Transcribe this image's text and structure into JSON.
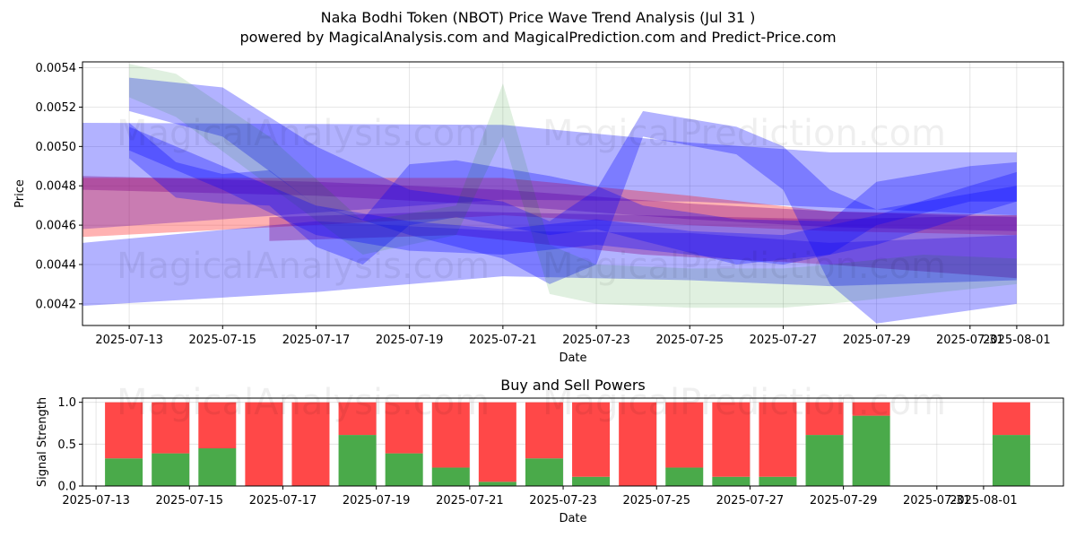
{
  "header": {
    "title_line1": "Naka Bodhi Token (NBOT) Price Wave Trend Analysis (Jul 31 )",
    "title_line2": "powered by MagicalAnalysis.com and MagicalPrediction.com and Predict-Price.com"
  },
  "watermarks": {
    "top_left": "MagicalAnalysis.com",
    "top_right": "MagicalPrediction.com",
    "bottom_left": "MagicalAnalysis.com",
    "bottom_right": "MagicalPrediction.com"
  },
  "colors": {
    "blue_band": "#0000ff",
    "red_band": "#ff0000",
    "purple_band": "#800080",
    "green_band": "#008000",
    "buy_bar": "#4aaa4a",
    "sell_bar": "#ff4848"
  },
  "chart_data": [
    {
      "type": "area",
      "title": "",
      "xlabel": "Date",
      "ylabel": "Price",
      "xlim": [
        "2025-07-12",
        "2025-08-02"
      ],
      "ylim": [
        0.00409,
        0.00543
      ],
      "grid": true,
      "x_ticks": [
        "2025-07-13",
        "2025-07-15",
        "2025-07-17",
        "2025-07-19",
        "2025-07-21",
        "2025-07-23",
        "2025-07-25",
        "2025-07-27",
        "2025-07-29",
        "2025-07-31",
        "2025-08-01"
      ],
      "y_ticks": [
        "0.0042",
        "0.0044",
        "0.0046",
        "0.0048",
        "0.0050",
        "0.0052",
        "0.0054"
      ],
      "bands": [
        {
          "color": "blue",
          "x": [
            "2025-07-12",
            "2025-07-21",
            "2025-07-25",
            "2025-07-28",
            "2025-08-01"
          ],
          "upper": [
            0.00512,
            0.00511,
            0.00502,
            0.00497,
            0.00497
          ],
          "lower": [
            0.00458,
            0.00473,
            0.00472,
            0.00469,
            0.00465
          ]
        },
        {
          "color": "red",
          "x": [
            "2025-07-12",
            "2025-07-21",
            "2025-07-25",
            "2025-07-28",
            "2025-08-01"
          ],
          "upper": [
            0.00484,
            0.00484,
            0.00475,
            0.00467,
            0.00465
          ],
          "lower": [
            0.00454,
            0.00465,
            0.0046,
            0.00457,
            0.00455
          ]
        },
        {
          "color": "blue",
          "x": [
            "2025-07-12",
            "2025-07-17",
            "2025-07-21",
            "2025-07-25",
            "2025-07-28",
            "2025-08-01"
          ],
          "upper": [
            0.00451,
            0.00462,
            0.00457,
            0.00456,
            0.00451,
            0.00455
          ],
          "lower": [
            0.00419,
            0.00426,
            0.00434,
            0.00432,
            0.00429,
            0.00432
          ]
        },
        {
          "color": "purple",
          "x": [
            "2025-07-12",
            "2025-07-17",
            "2025-07-21",
            "2025-07-25",
            "2025-07-28",
            "2025-08-01"
          ],
          "upper": [
            0.00485,
            0.00482,
            0.00478,
            0.00471,
            0.00467,
            0.00464
          ],
          "lower": [
            0.00478,
            0.00475,
            0.0047,
            0.00463,
            0.00459,
            0.00457
          ]
        },
        {
          "color": "purple",
          "x": [
            "2025-07-16",
            "2025-07-20",
            "2025-07-24",
            "2025-07-28",
            "2025-08-01"
          ],
          "upper": [
            0.00464,
            0.00467,
            0.00465,
            0.00463,
            0.00465
          ],
          "lower": [
            0.00452,
            0.00455,
            0.00445,
            0.0044,
            0.00433
          ]
        },
        {
          "color": "blue",
          "x": [
            "2025-07-13",
            "2025-07-14",
            "2025-07-15",
            "2025-07-16",
            "2025-07-17",
            "2025-07-18",
            "2025-07-19",
            "2025-07-20",
            "2025-07-22",
            "2025-07-23",
            "2025-07-24",
            "2025-07-26",
            "2025-07-28",
            "2025-07-29",
            "2025-07-31",
            "2025-08-01"
          ],
          "upper": [
            0.00512,
            0.00492,
            0.00486,
            0.00488,
            0.0047,
            0.00463,
            0.00491,
            0.00493,
            0.00485,
            0.0048,
            0.0047,
            0.00463,
            0.00462,
            0.00482,
            0.0049,
            0.00492
          ],
          "lower": [
            0.00494,
            0.00474,
            0.00471,
            0.0047,
            0.00449,
            0.0044,
            0.0046,
            0.00464,
            0.00455,
            0.00458,
            0.00452,
            0.0044,
            0.00445,
            0.0046,
            0.00472,
            0.00472
          ]
        },
        {
          "color": "blue",
          "x": [
            "2025-07-13",
            "2025-07-15",
            "2025-07-17",
            "2025-07-19",
            "2025-07-21",
            "2025-07-22",
            "2025-07-23",
            "2025-07-24",
            "2025-07-26",
            "2025-07-27",
            "2025-07-28",
            "2025-07-29",
            "2025-08-01"
          ],
          "upper": [
            0.00535,
            0.0053,
            0.005,
            0.00478,
            0.00472,
            0.00462,
            0.00478,
            0.00518,
            0.0051,
            0.005,
            0.00478,
            0.00468,
            0.0048
          ],
          "lower": [
            0.00518,
            0.00505,
            0.0047,
            0.00455,
            0.00443,
            0.0043,
            0.0044,
            0.00505,
            0.00496,
            0.00478,
            0.0043,
            0.0041,
            0.0042
          ]
        },
        {
          "color": "green",
          "x": [
            "2025-07-13",
            "2025-07-14",
            "2025-07-16",
            "2025-07-18",
            "2025-07-20",
            "2025-07-21",
            "2025-07-22",
            "2025-07-23",
            "2025-07-25",
            "2025-07-27",
            "2025-07-28",
            "2025-07-30",
            "2025-08-01"
          ],
          "upper": [
            0.00542,
            0.00537,
            0.00505,
            0.00462,
            0.0047,
            0.00532,
            0.0045,
            0.0044,
            0.00438,
            0.00438,
            0.0044,
            0.00445,
            0.00443
          ],
          "lower": [
            0.00525,
            0.00515,
            0.0048,
            0.00445,
            0.00455,
            0.00505,
            0.00425,
            0.0042,
            0.00418,
            0.00418,
            0.0042,
            0.00425,
            0.0043
          ]
        },
        {
          "color": "blue",
          "x": [
            "2025-07-13",
            "2025-07-15",
            "2025-07-17",
            "2025-07-19",
            "2025-07-21",
            "2025-07-23",
            "2025-07-25",
            "2025-07-27",
            "2025-07-29",
            "2025-07-31",
            "2025-08-01"
          ],
          "upper": [
            0.0051,
            0.0049,
            0.0047,
            0.00462,
            0.00458,
            0.00463,
            0.00457,
            0.00455,
            0.00465,
            0.0048,
            0.00487
          ],
          "lower": [
            0.00498,
            0.00478,
            0.00455,
            0.00447,
            0.00445,
            0.0045,
            0.00445,
            0.0044,
            0.0045,
            0.00465,
            0.00472
          ]
        }
      ]
    },
    {
      "type": "bar",
      "title": "Buy and Sell Powers",
      "xlabel": "Date",
      "ylabel": "Signal Strength",
      "xlim": [
        "2025-07-12",
        "2025-08-02"
      ],
      "ylim": [
        0,
        1.05
      ],
      "grid": true,
      "x_ticks": [
        "2025-07-13",
        "2025-07-15",
        "2025-07-17",
        "2025-07-19",
        "2025-07-21",
        "2025-07-23",
        "2025-07-25",
        "2025-07-27",
        "2025-07-29",
        "2025-07-31",
        "2025-08-01"
      ],
      "y_ticks": [
        "0.0",
        "0.5",
        "1.0"
      ],
      "categories": [
        "2025-07-13",
        "2025-07-14",
        "2025-07-15",
        "2025-07-16",
        "2025-07-17",
        "2025-07-18",
        "2025-07-19",
        "2025-07-20",
        "2025-07-21",
        "2025-07-22",
        "2025-07-23",
        "2025-07-24",
        "2025-07-25",
        "2025-07-26",
        "2025-07-27",
        "2025-07-28",
        "2025-07-29",
        "2025-07-30",
        "2025-08-01"
      ],
      "series": [
        {
          "values": [
            0.33,
            0.39,
            0.45,
            0.0,
            0.0,
            0.61,
            0.39,
            0.22,
            0.05,
            0.33,
            0.11,
            0.0,
            0.22,
            0.11,
            0.11,
            0.61,
            0.84,
            0.0,
            0.61
          ]
        },
        {
          "values": [
            0.67,
            0.61,
            0.55,
            1.0,
            1.0,
            0.39,
            0.61,
            0.78,
            0.95,
            0.67,
            0.89,
            1.0,
            0.78,
            0.89,
            0.89,
            0.39,
            0.16,
            0.0,
            0.39
          ]
        }
      ]
    }
  ]
}
